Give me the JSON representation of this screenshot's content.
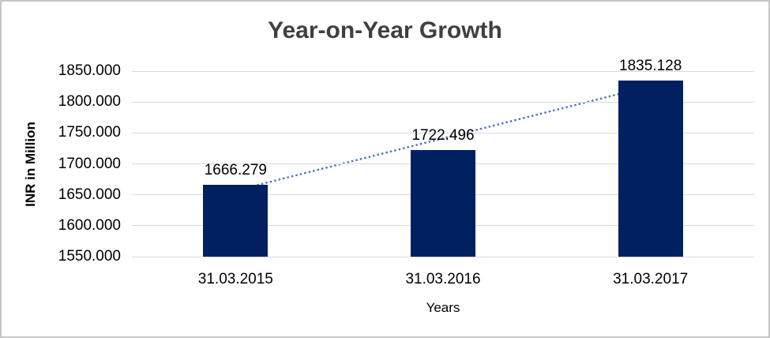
{
  "window": {
    "background_color": "#FFFFFF",
    "border_color": "#C6C6C6"
  },
  "chart_data": {
    "type": "bar",
    "title": "Year-on-Year Growth",
    "xlabel": "Years",
    "ylabel": "INR in Million",
    "categories": [
      "31.03.2015",
      "31.03.2016",
      "31.03.2017"
    ],
    "values": [
      1666.279,
      1722.496,
      1835.128
    ],
    "data_labels": [
      "1666.279",
      "1722.496",
      "1835.128"
    ],
    "yticks": [
      "1850.000",
      "1800.000",
      "1750.000",
      "1700.000",
      "1650.000",
      "1600.000",
      "1550.000"
    ],
    "ylim": [
      1550,
      1850
    ],
    "ytick_step": 50,
    "grid": true,
    "legend": "none",
    "bar_color": "#002060",
    "gridline_color": "#D9D9D9",
    "title_color": "#3F3F3F",
    "axis_text_color": "#000000",
    "trendline": {
      "type": "linear",
      "style": "dotted",
      "color": "#4472C4"
    }
  }
}
